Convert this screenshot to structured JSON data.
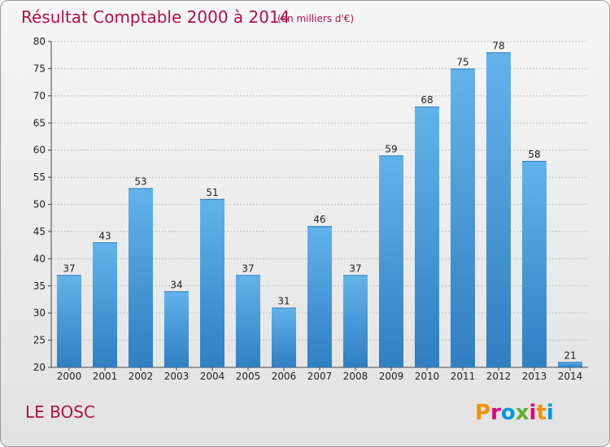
{
  "header": {
    "title": "Résultat Comptable 2000 à 2014",
    "unit": "(en milliers d'€)"
  },
  "footer": {
    "commune": "LE BOSC",
    "logo_letters": [
      "P",
      "r",
      "o",
      "x",
      "i",
      "t",
      "i"
    ],
    "logo_colors": [
      "#f39200",
      "#e4007c",
      "#0099d8",
      "#5fb233",
      "#e4007c",
      "#f39200",
      "#0099d8"
    ]
  },
  "colors": {
    "bar": "#4a9fe0",
    "bar_light": "#62b3ea",
    "bar_dark": "#2f7fc2",
    "title": "#b0104a"
  },
  "chart_data": {
    "type": "bar",
    "title": "Résultat Comptable 2000 à 2014",
    "categories": [
      "2000",
      "2001",
      "2002",
      "2003",
      "2004",
      "2005",
      "2006",
      "2007",
      "2008",
      "2009",
      "2010",
      "2011",
      "2012",
      "2013",
      "2014"
    ],
    "values": [
      37,
      43,
      53,
      34,
      51,
      37,
      31,
      46,
      37,
      59,
      68,
      75,
      78,
      58,
      21
    ],
    "ylim": [
      20,
      80
    ],
    "yticks": [
      20,
      25,
      30,
      35,
      40,
      45,
      50,
      55,
      60,
      65,
      70,
      75,
      80
    ],
    "grid": true
  }
}
